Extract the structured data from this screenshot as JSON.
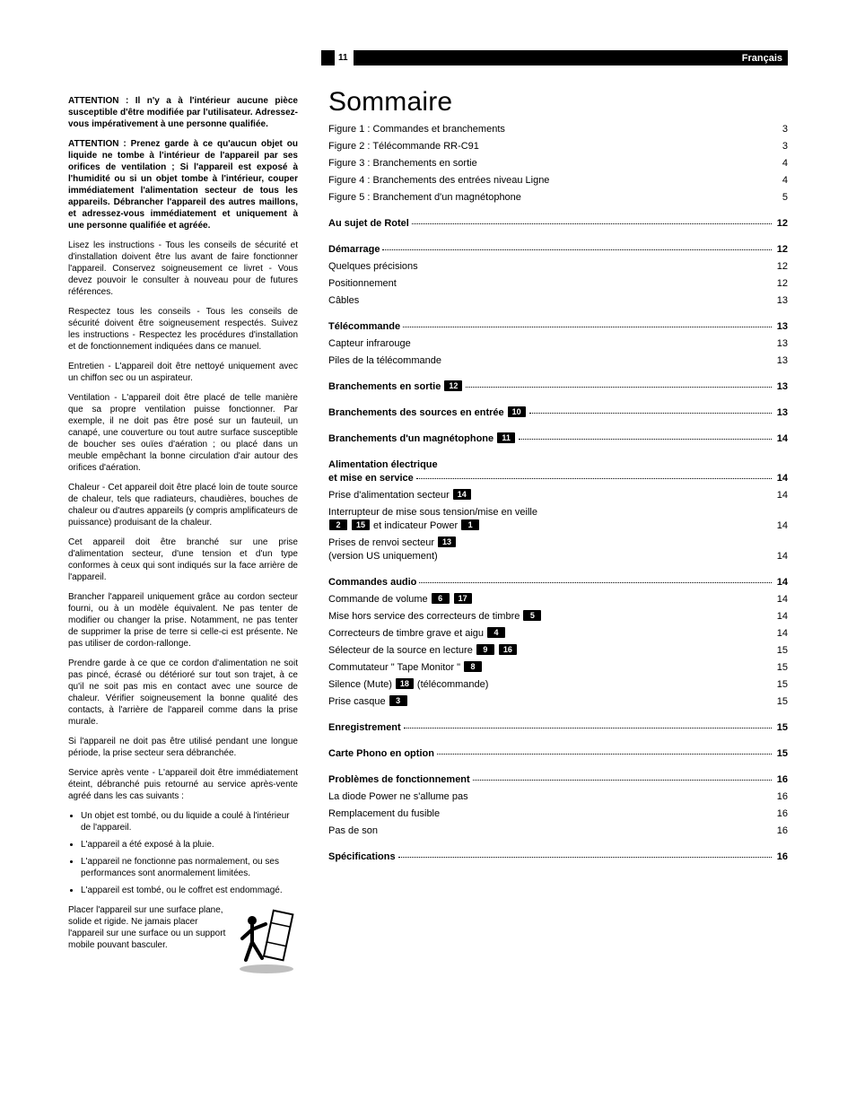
{
  "header": {
    "page_number": "11",
    "language": "Français"
  },
  "left_column": {
    "warn1": "ATTENTION : Il n'y a à l'intérieur aucune pièce susceptible d'être modifiée par l'utilisateur. Adressez-vous impérativement à une personne qualifiée.",
    "warn2": "ATTENTION : Prenez garde à ce qu'aucun objet ou liquide ne tombe à l'intérieur de l'appareil par ses orifices de ventilation ; Si l'appareil est exposé à l'humidité ou si un objet tombe à l'intérieur, couper immédiatement l'alimentation secteur de tous les appareils. Débrancher l'appareil des autres maillons, et adressez-vous immédiatement et uniquement à une personne qualifiée et agréée.",
    "p1": "Lisez les instructions - Tous les conseils de sécurité et d'installation doivent être lus avant de faire fonctionner l'appareil. Conservez soigneusement ce livret - Vous devez pouvoir le consulter à nouveau pour de futures références.",
    "p2": "Respectez tous les conseils - Tous les conseils de sécurité doivent être soigneusement respectés. Suivez les instructions - Respectez les procédures d'installation et de fonctionnement indiquées dans ce manuel.",
    "p3": "Entretien - L'appareil doit être nettoyé uniquement avec un chiffon sec ou un aspirateur.",
    "p4": "Ventilation - L'appareil doit être placé de telle manière que sa propre ventilation puisse fonctionner. Par exemple, il ne doit pas être posé sur un fauteuil, un canapé, une couverture ou tout autre surface susceptible de boucher ses ouïes d'aération ; ou placé dans un meuble empêchant la bonne circulation d'air autour des orifices d'aération.",
    "p5": "Chaleur - Cet appareil doit être placé loin de toute source de chaleur, tels que radiateurs, chaudières, bouches de chaleur ou d'autres appareils (y compris amplificateurs de puissance) produisant de la chaleur.",
    "p6": "Cet appareil doit être branché sur une prise d'alimentation secteur, d'une tension et d'un type conformes à ceux qui sont indiqués sur la face arrière de l'appareil.",
    "p7": "Brancher l'appareil uniquement grâce au cordon secteur fourni, ou à un modèle équivalent. Ne pas tenter de modifier ou changer la prise. Notamment, ne pas tenter de supprimer la prise de terre si celle-ci est présente. Ne pas utiliser de cordon-rallonge.",
    "p8": "Prendre garde à ce que ce cordon d'alimentation ne soit pas pincé, écrasé ou détérioré sur tout son trajet, à ce qu'il ne soit pas mis en contact avec une source de chaleur. Vérifier soigneusement la bonne qualité des contacts, à l'arrière de l'appareil comme dans la prise murale.",
    "p9": "Si l'appareil ne doit pas être utilisé pendant une longue période, la prise secteur sera débranchée.",
    "p10": "Service après vente - L'appareil doit être immédiatement éteint, débranché puis retourné au service après-vente agréé dans les cas suivants :",
    "bullets": [
      "Un objet est tombé, ou du liquide a coulé à l'intérieur de l'appareil.",
      "L'appareil a été exposé à la pluie.",
      "L'appareil ne fonctionne pas normalement, ou ses performances sont anormalement limitées.",
      "L'appareil est tombé, ou le coffret est endommagé."
    ],
    "placer": "Placer l'appareil sur une surface plane, solide et rigide. Ne jamais placer l'appareil sur une surface ou un support mobile pouvant basculer."
  },
  "right_column": {
    "title": "Sommaire",
    "figures": [
      {
        "label": "Figure 1 : Commandes et branchements",
        "page": "3"
      },
      {
        "label": "Figure 2 : Télécommande RR-C91",
        "page": "3"
      },
      {
        "label": "Figure 3 : Branchements en sortie",
        "page": "4"
      },
      {
        "label": "Figure 4 : Branchements des entrées niveau Ligne",
        "page": "4"
      },
      {
        "label": "Figure 5 : Branchement d'un magnétophone",
        "page": "5"
      }
    ],
    "toc": [
      {
        "type": "section",
        "label": "Au sujet de Rotel",
        "page": "12"
      },
      {
        "type": "section",
        "label": "Démarrage",
        "page": "12"
      },
      {
        "type": "sub",
        "label": "Quelques précisions",
        "page": "12"
      },
      {
        "type": "sub",
        "label": "Positionnement",
        "page": "12"
      },
      {
        "type": "sub",
        "label": "Câbles",
        "page": "13"
      },
      {
        "type": "section",
        "label": "Télécommande",
        "page": "13"
      },
      {
        "type": "sub",
        "label": "Capteur infrarouge",
        "page": "13"
      },
      {
        "type": "sub",
        "label": "Piles de la télécommande",
        "page": "13"
      },
      {
        "type": "section",
        "label": "Branchements en sortie",
        "refs": [
          "12"
        ],
        "page": "13"
      },
      {
        "type": "section",
        "label": "Branchements des sources en entrée",
        "refs": [
          "10"
        ],
        "page": "13",
        "sep": "."
      },
      {
        "type": "section",
        "label": "Branchements d'un magnétophone",
        "refs": [
          "11"
        ],
        "page": "14"
      },
      {
        "type": "section_two_line",
        "line1": "Alimentation électrique",
        "label": "et mise en service",
        "page": "14"
      },
      {
        "type": "sub",
        "label": "Prise d'alimentation secteur",
        "refs": [
          "14"
        ],
        "page": "14"
      },
      {
        "type": "sub_two_line",
        "line1_label": "Interrupteur de mise sous tension/mise en veille",
        "label_pre_refs": true,
        "refs": [
          "2",
          "15"
        ],
        "label_post": "et indicateur Power",
        "refs2": [
          "1"
        ],
        "page": "14"
      },
      {
        "type": "sub_two_line",
        "line1_label": "Prises de renvoi secteur",
        "line1_refs": [
          "13"
        ],
        "label": "(version US uniquement)",
        "page": "14"
      },
      {
        "type": "section",
        "label": "Commandes audio",
        "page": "14"
      },
      {
        "type": "sub",
        "label": "Commande de volume",
        "refs": [
          "6",
          "17"
        ],
        "page": "14"
      },
      {
        "type": "sub",
        "label": "Mise hors service des correcteurs de timbre",
        "refs": [
          "5"
        ],
        "page": "14"
      },
      {
        "type": "sub",
        "label": "Correcteurs de timbre grave et aigu",
        "refs": [
          "4"
        ],
        "page": "14"
      },
      {
        "type": "sub",
        "label": "Sélecteur de la source en lecture",
        "refs": [
          "9",
          "16"
        ],
        "page": "15"
      },
      {
        "type": "sub",
        "label": "Commutateur \" Tape Monitor \"",
        "refs": [
          "8"
        ],
        "page": "15"
      },
      {
        "type": "sub",
        "label_pre": "Silence (Mute)",
        "refs": [
          "18"
        ],
        "label_post": "(télécommande)",
        "page": "15"
      },
      {
        "type": "sub",
        "label": "Prise casque",
        "refs": [
          "3"
        ],
        "page": "15"
      },
      {
        "type": "section",
        "label": "Enregistrement",
        "page": "15"
      },
      {
        "type": "section",
        "label": "Carte Phono en option",
        "page": "15"
      },
      {
        "type": "section",
        "label": "Problèmes de fonctionnement",
        "page": "16"
      },
      {
        "type": "sub",
        "label": "La diode Power ne s'allume pas",
        "page": "16"
      },
      {
        "type": "sub",
        "label": "Remplacement du fusible",
        "page": "16"
      },
      {
        "type": "sub",
        "label": "Pas de son",
        "page": "16"
      },
      {
        "type": "section",
        "label": "Spécifications",
        "page": "16"
      }
    ]
  }
}
